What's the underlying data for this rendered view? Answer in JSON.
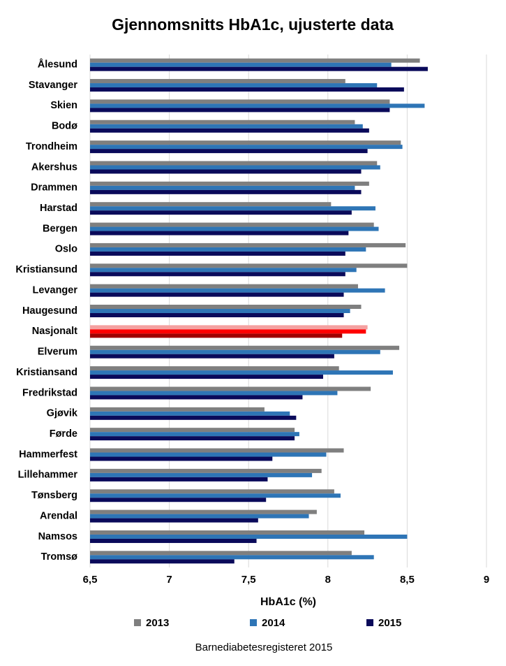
{
  "chart_data": {
    "type": "hbar",
    "title": "Gjennomsnitts HbA1c, ujusterte data",
    "x_label": "HbA1c (%)",
    "source": "Barnediabetesregisteret 2015",
    "categories": [
      "Ålesund",
      "Stavanger",
      "Skien",
      "Bodø",
      "Trondheim",
      "Akershus",
      "Drammen",
      "Harstad",
      "Bergen",
      "Oslo",
      "Kristiansund",
      "Levanger",
      "Haugesund",
      "Nasjonalt",
      "Elverum",
      "Kristiansand",
      "Fredrikstad",
      "Gjøvik",
      "Førde",
      "Hammerfest",
      "Lillehammer",
      "Tønsberg",
      "Arendal",
      "Namsos",
      "Tromsø"
    ],
    "highlight_category": "Nasjonalt",
    "series": [
      {
        "name": "2013",
        "color": "#7f7f7f",
        "highlight_color": "#f4a0a0",
        "values": [
          8.58,
          8.11,
          8.39,
          8.17,
          8.46,
          8.31,
          8.26,
          8.02,
          8.29,
          8.49,
          8.5,
          8.19,
          8.21,
          8.25,
          8.45,
          8.07,
          8.27,
          7.6,
          7.79,
          8.1,
          7.96,
          8.04,
          7.93,
          8.23,
          8.15
        ]
      },
      {
        "name": "2014",
        "color": "#2e75b6",
        "highlight_color": "#ff0000",
        "values": [
          8.4,
          8.31,
          8.61,
          8.22,
          8.47,
          8.33,
          8.17,
          8.3,
          8.32,
          8.24,
          8.18,
          8.36,
          8.14,
          8.24,
          8.33,
          8.41,
          8.06,
          7.76,
          7.82,
          7.99,
          7.9,
          8.08,
          7.88,
          8.5,
          8.29
        ]
      },
      {
        "name": "2015",
        "color": "#0a0a5a",
        "highlight_color": "#a00000",
        "values": [
          8.63,
          8.48,
          8.39,
          8.26,
          8.25,
          8.21,
          8.21,
          8.15,
          8.13,
          8.11,
          8.11,
          8.1,
          8.1,
          8.09,
          8.04,
          7.97,
          7.84,
          7.8,
          7.79,
          7.65,
          7.62,
          7.61,
          7.56,
          7.55,
          7.41
        ]
      }
    ],
    "xlim": [
      6.5,
      9
    ],
    "xticks": [
      {
        "value": 6.5,
        "label": "6,5"
      },
      7,
      {
        "value": 7.5,
        "label": "7,5"
      },
      8,
      {
        "value": 8.5,
        "label": "8,5"
      },
      9
    ],
    "grid": true,
    "legend": "bottom"
  }
}
